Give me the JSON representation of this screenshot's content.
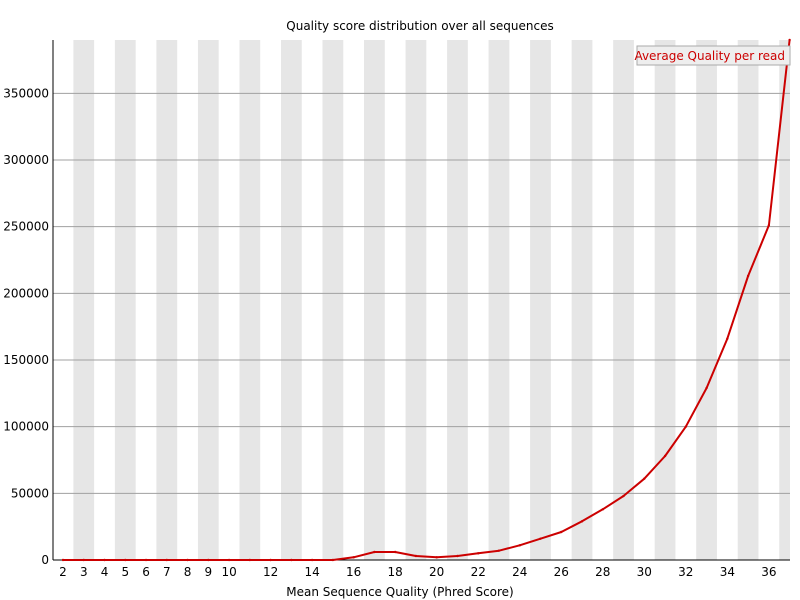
{
  "chart_data": {
    "type": "line",
    "title": "Quality score distribution over all sequences",
    "xlabel": "Mean Sequence Quality (Phred Score)",
    "ylabel": "",
    "x": [
      2,
      3,
      4,
      5,
      6,
      7,
      8,
      9,
      10,
      11,
      12,
      13,
      14,
      15,
      16,
      17,
      18,
      19,
      20,
      21,
      22,
      23,
      24,
      25,
      26,
      27,
      28,
      29,
      30,
      31,
      32,
      33,
      34,
      35,
      36,
      37
    ],
    "x_tick_labels": [
      "2",
      "3",
      "4",
      "5",
      "6",
      "7",
      "8",
      "9",
      "10",
      "12",
      "14",
      "16",
      "18",
      "20",
      "22",
      "24",
      "26",
      "28",
      "30",
      "32",
      "34",
      "36"
    ],
    "yticks": [
      0,
      50000,
      100000,
      150000,
      200000,
      250000,
      300000,
      350000
    ],
    "ylim": [
      0,
      390000
    ],
    "grid": true,
    "legend": {
      "position": "top-right"
    },
    "series": [
      {
        "name": "Average Quality per read",
        "color": "#cc0000",
        "values": [
          0,
          0,
          0,
          0,
          0,
          0,
          0,
          0,
          0,
          0,
          0,
          0,
          0,
          0,
          2000,
          6000,
          6000,
          3000,
          2000,
          3000,
          5000,
          7000,
          11000,
          16000,
          21000,
          29000,
          38000,
          48000,
          61000,
          78000,
          100000,
          129000,
          166000,
          213000,
          251000,
          390000
        ]
      }
    ],
    "colors": {
      "stripe": "#e6e6e6",
      "gridline": "#a0a0a0",
      "axis": "#000000",
      "legend_border": "#aaaaaa",
      "legend_background": "#eeeeee"
    }
  }
}
